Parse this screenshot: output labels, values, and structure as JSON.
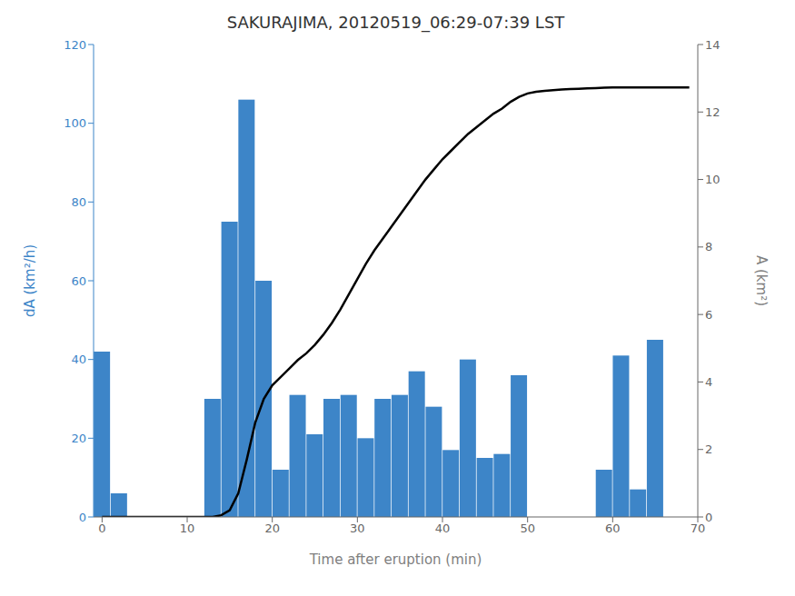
{
  "chart_data": {
    "type": "bar",
    "title": "SAKURAJIMA, 20120519_06:29-07:39 LST",
    "xlabel": "Time after eruption (min)",
    "ylabel": "dA (km²/h)",
    "y2label": "A (km²)",
    "grid": false,
    "x": [
      0,
      2,
      8,
      13,
      14,
      15,
      16,
      17,
      18,
      19,
      20,
      21,
      22,
      23,
      24,
      25,
      26,
      27,
      28,
      29,
      30,
      31,
      32,
      33,
      34,
      35,
      36,
      37,
      38,
      39,
      40,
      41,
      42,
      43,
      44,
      45,
      46,
      47,
      48,
      49,
      50,
      51,
      52,
      53,
      54,
      55,
      56,
      57,
      58,
      59,
      60,
      61,
      62,
      63,
      64,
      65,
      66,
      67,
      68,
      69
    ],
    "xlim": [
      -1,
      70
    ],
    "xticks": [
      0,
      10,
      20,
      30,
      40,
      50,
      60,
      70
    ],
    "ylim": [
      0,
      120
    ],
    "yticks": [
      0,
      20,
      40,
      60,
      80,
      100,
      120
    ],
    "y2lim": [
      0,
      14
    ],
    "y2ticks": [
      0,
      2,
      4,
      6,
      8,
      10,
      12,
      14
    ],
    "series": [
      {
        "type": "bar",
        "color": "#3d85c8",
        "values": [
          42,
          6,
          null,
          30,
          null,
          75,
          null,
          106,
          null,
          60,
          null,
          12,
          null,
          31,
          null,
          21,
          null,
          30,
          null,
          31,
          null,
          20,
          null,
          30,
          null,
          31,
          null,
          37,
          null,
          28,
          null,
          17,
          null,
          40,
          null,
          15,
          null,
          16,
          null,
          36,
          null,
          null,
          null,
          null,
          null,
          null,
          null,
          null,
          null,
          12,
          null,
          41,
          null,
          7,
          null,
          45,
          null,
          null,
          null,
          null
        ]
      },
      {
        "type": "line",
        "color": "#000000",
        "axis": "y2",
        "values": [
          0.0,
          0.0,
          0.0,
          0.0,
          0.05,
          0.2,
          0.7,
          1.7,
          2.8,
          3.5,
          3.9,
          4.15,
          4.4,
          4.65,
          4.85,
          5.1,
          5.4,
          5.75,
          6.15,
          6.6,
          7.05,
          7.5,
          7.9,
          8.25,
          8.6,
          8.95,
          9.3,
          9.65,
          10.0,
          10.3,
          10.6,
          10.85,
          11.1,
          11.35,
          11.55,
          11.75,
          11.95,
          12.1,
          12.3,
          12.45,
          12.55,
          12.6,
          12.63,
          12.65,
          12.67,
          12.68,
          12.69,
          12.7,
          12.71,
          12.72,
          12.73,
          12.73,
          12.73,
          12.73,
          12.73,
          12.73,
          12.73,
          12.73,
          12.73,
          12.73
        ]
      }
    ]
  }
}
